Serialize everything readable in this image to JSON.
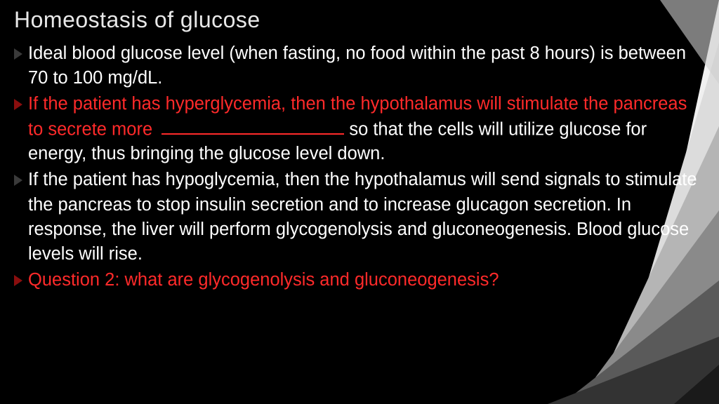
{
  "slide": {
    "title": "Homeostasis of glucose",
    "bullets": [
      {
        "marker_color": "dark",
        "segments": [
          {
            "text": "Ideal blood glucose level (when fasting, no food within the past 8 hours) is between 70 to 100 mg/dL.",
            "color": "white"
          }
        ]
      },
      {
        "marker_color": "red",
        "segments": [
          {
            "text": "If the patient has hyperglycemia, then the hypothalamus will stimulate the pancreas to secrete more ",
            "color": "red"
          },
          {
            "blank": true
          },
          {
            "text": " so that the cells will utilize glucose for energy, thus bringing the glucose level down.",
            "color": "white"
          }
        ]
      },
      {
        "marker_color": "dark",
        "segments": [
          {
            "text": "If the patient has hypoglycemia, then the hypothalamus will send signals to stimulate the pancreas to stop insulin secretion and to increase glucagon secretion. In response, the liver will perform glycogenolysis and gluconeogenesis. Blood glucose levels will rise.",
            "color": "white"
          }
        ]
      },
      {
        "marker_color": "red",
        "segments": [
          {
            "text": "Question 2: what are glycogenolysis and gluconeogenesis?",
            "color": "red"
          }
        ]
      }
    ]
  },
  "style": {
    "background_color": "#000000",
    "title_color": "#e8e8e8",
    "title_fontsize": 32,
    "body_fontsize": 25.5,
    "text_white": "#ffffff",
    "text_red": "#ff2a2a",
    "marker_dark": "#3a3a3a",
    "marker_red": "#8a0e0e",
    "facet_colors": [
      "#1a1a1a",
      "#333333",
      "#5a5a5a",
      "#8a8a8a",
      "#b5b5b5",
      "#dcdcdc",
      "#f0f0f0"
    ]
  }
}
